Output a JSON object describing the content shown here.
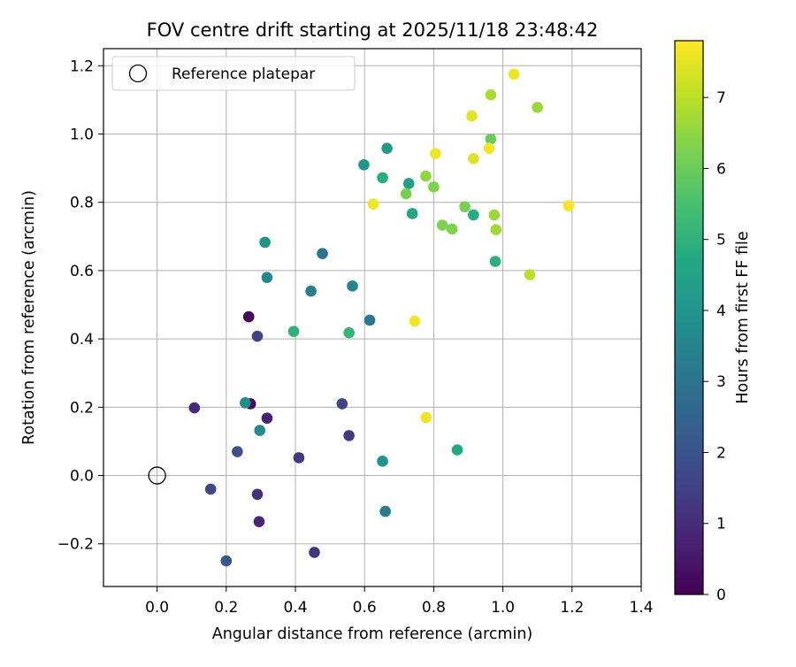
{
  "chart_data": {
    "type": "scatter",
    "title": "FOV centre drift starting at 2025/11/18 23:48:42",
    "xlabel": "Angular distance from reference (arcmin)",
    "ylabel": "Rotation from reference (arcmin)",
    "colorbar_label": "Hours from first FF file",
    "xlim": [
      -0.155,
      1.4
    ],
    "ylim": [
      -0.325,
      1.25
    ],
    "xticks": [
      0.0,
      0.2,
      0.4,
      0.6,
      0.8,
      1.0,
      1.2,
      1.4
    ],
    "yticks": [
      -0.2,
      0.0,
      0.2,
      0.4,
      0.6,
      0.8,
      1.0,
      1.2
    ],
    "xtick_labels": [
      "0.0",
      "0.2",
      "0.4",
      "0.6",
      "0.8",
      "1.0",
      "1.2",
      "1.4"
    ],
    "ytick_labels": [
      "−0.2",
      "0.0",
      "0.2",
      "0.4",
      "0.6",
      "0.8",
      "1.0",
      "1.2"
    ],
    "grid": true,
    "colorbar_range": [
      0,
      7.8
    ],
    "colorbar_ticks": [
      0,
      1,
      2,
      3,
      4,
      5,
      6,
      7
    ],
    "colorbar_tick_labels": [
      "0",
      "1",
      "2",
      "3",
      "4",
      "5",
      "6",
      "7"
    ],
    "colormap": "viridis",
    "legend": {
      "position": "top-left",
      "entries": [
        "Reference platepar"
      ]
    },
    "reference_point": {
      "x": 0.0,
      "y": 0.0,
      "label": "Reference platepar"
    },
    "points": [
      {
        "x": 0.265,
        "y": 0.465,
        "hours": 0.1
      },
      {
        "x": 0.27,
        "y": 0.21,
        "hours": 0.2
      },
      {
        "x": 0.318,
        "y": 0.168,
        "hours": 0.7
      },
      {
        "x": 0.295,
        "y": -0.135,
        "hours": 0.8
      },
      {
        "x": 0.108,
        "y": 0.198,
        "hours": 0.9
      },
      {
        "x": 0.29,
        "y": -0.055,
        "hours": 1.1
      },
      {
        "x": 0.455,
        "y": -0.225,
        "hours": 1.2
      },
      {
        "x": 0.41,
        "y": 0.052,
        "hours": 1.3
      },
      {
        "x": 0.555,
        "y": 0.117,
        "hours": 1.4
      },
      {
        "x": 0.29,
        "y": 0.408,
        "hours": 1.5
      },
      {
        "x": 0.535,
        "y": 0.21,
        "hours": 1.6
      },
      {
        "x": 0.155,
        "y": -0.04,
        "hours": 1.7
      },
      {
        "x": 0.232,
        "y": 0.07,
        "hours": 1.9
      },
      {
        "x": 0.2,
        "y": -0.25,
        "hours": 2.1
      },
      {
        "x": 0.478,
        "y": 0.65,
        "hours": 3.0
      },
      {
        "x": 0.615,
        "y": 0.455,
        "hours": 3.1
      },
      {
        "x": 0.66,
        "y": -0.105,
        "hours": 3.2
      },
      {
        "x": 0.445,
        "y": 0.54,
        "hours": 3.3
      },
      {
        "x": 0.565,
        "y": 0.555,
        "hours": 3.5
      },
      {
        "x": 0.318,
        "y": 0.58,
        "hours": 3.6
      },
      {
        "x": 0.297,
        "y": 0.132,
        "hours": 3.7
      },
      {
        "x": 0.255,
        "y": 0.213,
        "hours": 3.8
      },
      {
        "x": 0.312,
        "y": 0.683,
        "hours": 3.9
      },
      {
        "x": 0.652,
        "y": 0.042,
        "hours": 4.0
      },
      {
        "x": 0.598,
        "y": 0.91,
        "hours": 4.0
      },
      {
        "x": 0.665,
        "y": 0.958,
        "hours": 4.2
      },
      {
        "x": 0.728,
        "y": 0.855,
        "hours": 4.4
      },
      {
        "x": 0.738,
        "y": 0.767,
        "hours": 4.6
      },
      {
        "x": 0.868,
        "y": 0.075,
        "hours": 4.7
      },
      {
        "x": 0.652,
        "y": 0.872,
        "hours": 4.8
      },
      {
        "x": 0.915,
        "y": 0.763,
        "hours": 4.8
      },
      {
        "x": 0.978,
        "y": 0.627,
        "hours": 4.9
      },
      {
        "x": 0.395,
        "y": 0.422,
        "hours": 5.0
      },
      {
        "x": 0.555,
        "y": 0.418,
        "hours": 5.1
      },
      {
        "x": 0.965,
        "y": 0.985,
        "hours": 6.0
      },
      {
        "x": 0.72,
        "y": 0.825,
        "hours": 6.2
      },
      {
        "x": 0.89,
        "y": 0.787,
        "hours": 6.2
      },
      {
        "x": 0.8,
        "y": 0.845,
        "hours": 6.3
      },
      {
        "x": 0.825,
        "y": 0.733,
        "hours": 6.3
      },
      {
        "x": 0.853,
        "y": 0.722,
        "hours": 6.3
      },
      {
        "x": 0.777,
        "y": 0.877,
        "hours": 6.5
      },
      {
        "x": 0.975,
        "y": 0.763,
        "hours": 6.6
      },
      {
        "x": 0.98,
        "y": 0.72,
        "hours": 6.7
      },
      {
        "x": 1.1,
        "y": 1.078,
        "hours": 6.6
      },
      {
        "x": 0.965,
        "y": 1.115,
        "hours": 6.8
      },
      {
        "x": 1.078,
        "y": 0.588,
        "hours": 7.0
      },
      {
        "x": 0.915,
        "y": 0.928,
        "hours": 7.4
      },
      {
        "x": 0.91,
        "y": 1.053,
        "hours": 7.5
      },
      {
        "x": 1.032,
        "y": 1.175,
        "hours": 7.6
      },
      {
        "x": 0.805,
        "y": 0.943,
        "hours": 7.6
      },
      {
        "x": 0.625,
        "y": 0.795,
        "hours": 7.6
      },
      {
        "x": 0.96,
        "y": 0.958,
        "hours": 7.7
      },
      {
        "x": 1.19,
        "y": 0.79,
        "hours": 7.7
      },
      {
        "x": 0.745,
        "y": 0.452,
        "hours": 7.7
      },
      {
        "x": 0.778,
        "y": 0.17,
        "hours": 7.6
      }
    ]
  }
}
